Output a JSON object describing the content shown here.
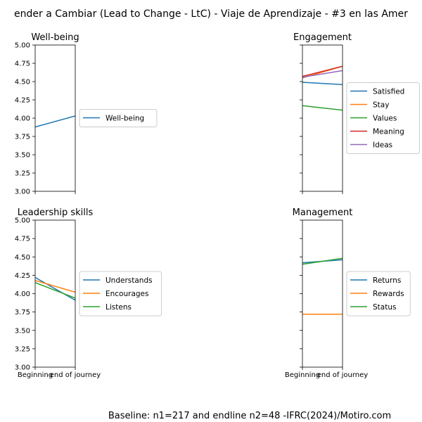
{
  "figure": {
    "title": "ender a Cambiar (Lead to Change - LtC) - Viaje de Aprendizaje - #3 en las Amer",
    "footer": "Baseline: n1=217 and endline n2=48 -IFRC(2024)/Motiro.com"
  },
  "chart_data": [
    {
      "type": "line",
      "title": "Well-being",
      "x": [
        "Beginning",
        "end of journey"
      ],
      "ylim": [
        3.0,
        5.0
      ],
      "yticks": [
        "3.00",
        "3.25",
        "3.50",
        "3.75",
        "4.00",
        "4.25",
        "4.50",
        "4.75",
        "5.00"
      ],
      "show_y_ticklabels": true,
      "show_x_ticklabels": false,
      "legend_position": "right",
      "series": [
        {
          "name": "Well-being",
          "color": "#1f77b4",
          "values": [
            3.88,
            4.03
          ]
        }
      ]
    },
    {
      "type": "line",
      "title": "Engagement",
      "x": [
        "Beginning",
        "end of journey"
      ],
      "ylim": [
        3.0,
        5.0
      ],
      "yticks": [
        "3.00",
        "3.25",
        "3.50",
        "3.75",
        "4.00",
        "4.25",
        "4.50",
        "4.75",
        "5.00"
      ],
      "show_y_ticklabels": false,
      "show_x_ticklabels": false,
      "legend_position": "right",
      "series": [
        {
          "name": "Satisfied",
          "color": "#1f77b4",
          "values": [
            4.49,
            4.46
          ]
        },
        {
          "name": "Stay",
          "color": "#ff7f0e",
          "values": [
            4.55,
            4.71
          ]
        },
        {
          "name": "Values",
          "color": "#2ca02c",
          "values": [
            4.17,
            4.11
          ]
        },
        {
          "name": "Meaning",
          "color": "#d62728",
          "values": [
            4.57,
            4.71
          ]
        },
        {
          "name": "Ideas",
          "color": "#9467bd",
          "values": [
            4.56,
            4.65
          ]
        }
      ]
    },
    {
      "type": "line",
      "title": "Leadership skills",
      "x": [
        "Beginning",
        "end of journey"
      ],
      "ylim": [
        3.0,
        5.0
      ],
      "yticks": [
        "3.00",
        "3.25",
        "3.50",
        "3.75",
        "4.00",
        "4.25",
        "4.50",
        "4.75",
        "5.00"
      ],
      "show_y_ticklabels": true,
      "show_x_ticklabels": true,
      "legend_position": "right",
      "series": [
        {
          "name": "Understands",
          "color": "#1f77b4",
          "values": [
            4.22,
            3.91
          ]
        },
        {
          "name": "Encourages",
          "color": "#ff7f0e",
          "values": [
            4.18,
            4.02
          ]
        },
        {
          "name": "Listens",
          "color": "#2ca02c",
          "values": [
            4.15,
            3.94
          ]
        }
      ]
    },
    {
      "type": "line",
      "title": "Management",
      "x": [
        "Beginning",
        "end of journey"
      ],
      "ylim": [
        3.0,
        5.0
      ],
      "yticks": [
        "3.00",
        "3.25",
        "3.50",
        "3.75",
        "4.00",
        "4.25",
        "4.50",
        "4.75",
        "5.00"
      ],
      "show_y_ticklabels": false,
      "show_x_ticklabels": true,
      "legend_position": "right",
      "series": [
        {
          "name": "Returns",
          "color": "#1f77b4",
          "values": [
            4.42,
            4.46
          ]
        },
        {
          "name": "Rewards",
          "color": "#ff7f0e",
          "values": [
            3.72,
            3.72
          ]
        },
        {
          "name": "Status",
          "color": "#2ca02c",
          "values": [
            4.4,
            4.48
          ]
        }
      ]
    }
  ]
}
